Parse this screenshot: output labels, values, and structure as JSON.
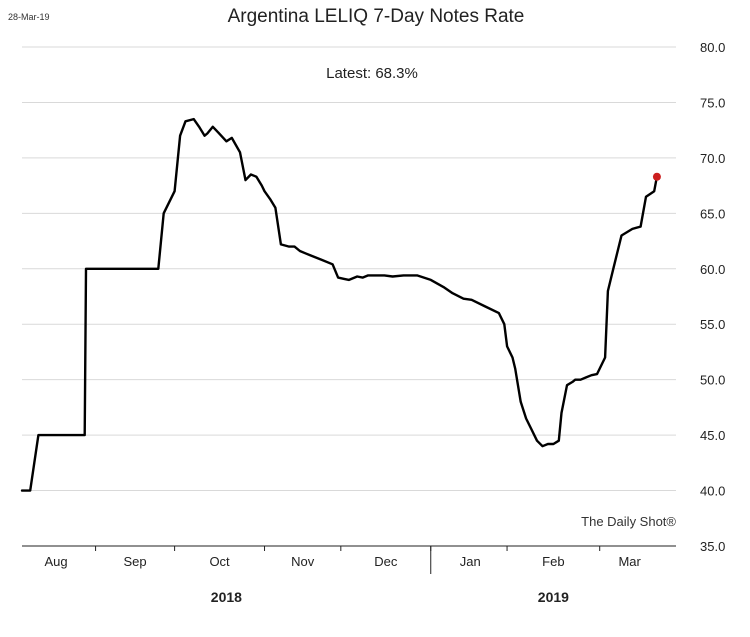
{
  "date_stamp": "28-Mar-19",
  "source": "The Daily Shot®",
  "chart_data": {
    "type": "line",
    "title": "Argentina LELIQ 7-Day Notes Rate",
    "annotation": "Latest:  68.3%",
    "ylim": [
      35,
      80
    ],
    "yticks": [
      "80.0",
      "75.0",
      "70.0",
      "65.0",
      "60.0",
      "55.0",
      "50.0",
      "45.0",
      "40.0",
      "35.0"
    ],
    "ytick_values": [
      80,
      75,
      70,
      65,
      60,
      55,
      50,
      45,
      40,
      35
    ],
    "xlim": [
      0,
      240
    ],
    "month_labels": [
      "Aug",
      "Sep",
      "Oct",
      "Nov",
      "Dec",
      "Jan",
      "Feb",
      "Mar"
    ],
    "month_centers": [
      12.5,
      41.5,
      72.5,
      103,
      133.5,
      164.5,
      195,
      223
    ],
    "month_boundaries": [
      27,
      56,
      89,
      117,
      150,
      178,
      212
    ],
    "year_divider": 150,
    "year_labels": [
      "2018",
      "2019"
    ],
    "year_centers": [
      75,
      195
    ],
    "grid": true,
    "series": [
      {
        "name": "LELIQ 7-Day Notes Rate",
        "color": "#000000",
        "x": [
          0,
          3,
          6,
          22,
          23,
          23.5,
          50,
          52,
          56,
          58,
          60,
          63,
          65,
          67,
          68,
          70,
          72,
          75,
          77,
          80,
          82,
          84,
          86,
          88,
          89,
          91,
          93,
          95,
          98,
          100,
          102,
          104,
          106,
          110,
          114,
          116,
          118,
          120,
          123,
          125,
          127,
          130,
          133,
          136,
          140,
          145,
          150,
          155,
          158,
          162,
          165,
          170,
          175,
          177,
          178,
          180,
          181,
          183,
          185,
          187,
          189,
          191,
          193,
          195,
          197,
          198,
          200,
          202,
          203,
          205,
          207,
          209,
          211,
          214,
          215,
          216,
          217,
          220,
          224,
          227,
          229,
          232,
          233
        ],
        "y": [
          40.0,
          40.0,
          45.0,
          45.0,
          45.0,
          60.0,
          60.0,
          65.0,
          67.0,
          72.0,
          73.3,
          73.5,
          72.8,
          72.0,
          72.2,
          72.8,
          72.3,
          71.5,
          71.8,
          70.5,
          68.0,
          68.5,
          68.3,
          67.5,
          67.0,
          66.3,
          65.5,
          62.2,
          62.0,
          62.0,
          61.6,
          61.4,
          61.2,
          60.8,
          60.4,
          59.2,
          59.1,
          59.0,
          59.3,
          59.2,
          59.4,
          59.4,
          59.4,
          59.3,
          59.4,
          59.4,
          59.0,
          58.3,
          57.8,
          57.3,
          57.2,
          56.6,
          56.0,
          55.0,
          53.0,
          52.0,
          51.0,
          48.0,
          46.5,
          45.5,
          44.5,
          44.0,
          44.2,
          44.2,
          44.5,
          47.0,
          49.5,
          49.8,
          50.0,
          50.0,
          50.2,
          50.4,
          50.5,
          52.0,
          58.0,
          59.0,
          60.0,
          63.0,
          63.6,
          63.8,
          66.5,
          67.0,
          68.3
        ]
      }
    ],
    "latest_marker": {
      "x": 233,
      "y": 68.3,
      "color": "#cc1f1f"
    }
  }
}
